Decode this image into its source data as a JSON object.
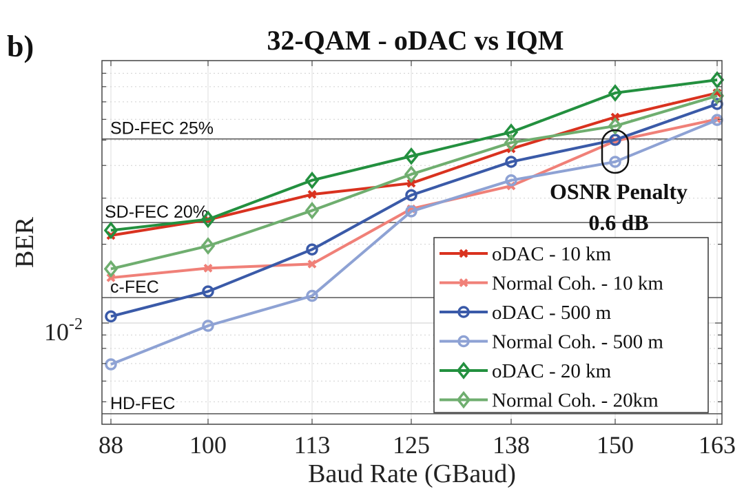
{
  "chart_data": {
    "type": "line",
    "panel_label": "b)",
    "title": "32-QAM - oDAC vs IQM",
    "xlabel": "Baud Rate (GBaud)",
    "ylabel": "BER",
    "yscale": "log",
    "ylim": [
      0.0041,
      0.1
    ],
    "y_tick_labels": [
      {
        "value": 0.01,
        "base": "10",
        "exp": "-2"
      }
    ],
    "categories": [
      "88",
      "100",
      "113",
      "125",
      "138",
      "150",
      "163"
    ],
    "grid": true,
    "legend_position": "bottom-right",
    "thresholds": [
      {
        "name": "SD-FEC 25%",
        "value": 0.0505
      },
      {
        "name": "SD-FEC 20%",
        "value": 0.0242
      },
      {
        "name": "c-FEC",
        "value": 0.0125
      },
      {
        "name": "HD-FEC",
        "value": 0.0045
      }
    ],
    "annotation": {
      "line1": "OSNR Penalty",
      "line2": "0.6 dB",
      "category": "150"
    },
    "series": [
      {
        "name": "oDAC - 10 km",
        "color": "#d9321f",
        "marker": "x",
        "values": [
          0.0216,
          0.0248,
          0.031,
          0.0342,
          0.0463,
          0.0612,
          0.0757
        ]
      },
      {
        "name": "Normal Coh. - 10 km",
        "color": "#f08078",
        "marker": "x",
        "values": [
          0.0149,
          0.0162,
          0.0168,
          0.0273,
          0.0334,
          0.0496,
          0.0601
        ]
      },
      {
        "name": "oDAC - 500 m",
        "color": "#3a5aa8",
        "marker": "o",
        "values": [
          0.0106,
          0.0132,
          0.0191,
          0.0308,
          0.0413,
          0.0501,
          0.0687
        ]
      },
      {
        "name": "Normal Coh. - 500 m",
        "color": "#8ea2d4",
        "marker": "o",
        "values": [
          0.00695,
          0.00976,
          0.0127,
          0.0267,
          0.0351,
          0.0413,
          0.0597
        ]
      },
      {
        "name": "oDAC - 20 km",
        "color": "#23903f",
        "marker": "d",
        "values": [
          0.0226,
          0.0249,
          0.0351,
          0.0434,
          0.0536,
          0.0757,
          0.0849
        ]
      },
      {
        "name": "Normal Coh. - 20km",
        "color": "#6fae6f",
        "marker": "d",
        "values": [
          0.0161,
          0.0197,
          0.0269,
          0.037,
          0.0489,
          0.0566,
          0.0738
        ]
      }
    ]
  }
}
